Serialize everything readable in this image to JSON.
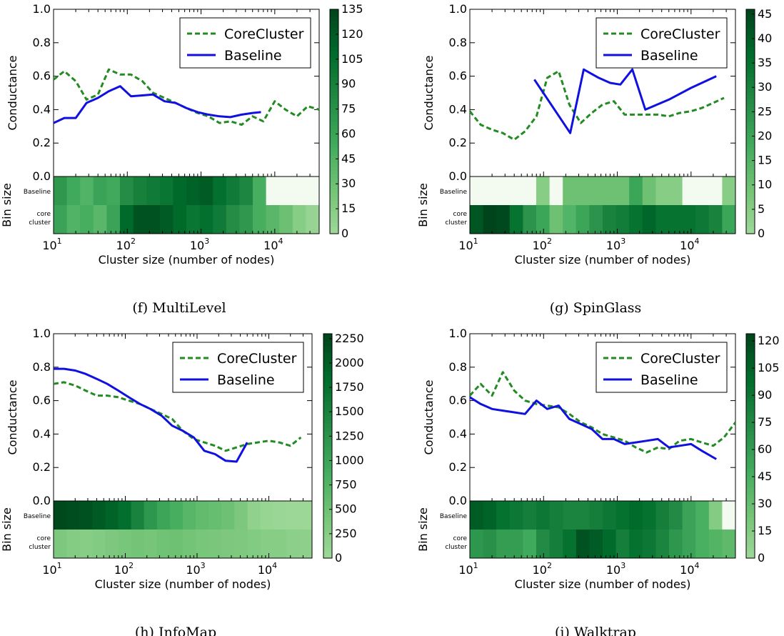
{
  "figure": {
    "bin_row_labels": {
      "baseline": "Baseline",
      "core1": "core",
      "core2": "cluster"
    },
    "bin_ylabel": "Bin size",
    "conductance_ylabel": "Conductance",
    "xlabel": "Cluster size (number of nodes)",
    "y_tick_labels": [
      "0.0",
      "0.2",
      "0.4",
      "0.6",
      "0.8",
      "1.0"
    ],
    "x_tick_labels": [
      {
        "base": "10",
        "exp": "1"
      },
      {
        "base": "10",
        "exp": "2"
      },
      {
        "base": "10",
        "exp": "3"
      },
      {
        "base": "10",
        "exp": "4"
      }
    ],
    "legend": {
      "corecluster": "CoreCluster",
      "baseline": "Baseline"
    },
    "colors": {
      "corecluster": "#228B22",
      "baseline": "#1010E0",
      "heat_low": "#f3fbf0",
      "heat_high": "#00441b"
    }
  },
  "chart_data": [
    {
      "type": "line",
      "caption": "(f) MultiLevel",
      "xscale": "log",
      "xlim": [
        10,
        40000
      ],
      "ylim": [
        0,
        1
      ],
      "series": [
        {
          "name": "CoreCluster",
          "x": [
            10,
            14,
            20,
            28,
            40,
            56,
            80,
            112,
            160,
            224,
            320,
            450,
            630,
            900,
            1260,
            1780,
            2500,
            3550,
            5000,
            7000,
            10000,
            14000,
            20000,
            28000,
            40000
          ],
          "y": [
            0.58,
            0.63,
            0.57,
            0.46,
            0.49,
            0.64,
            0.61,
            0.61,
            0.57,
            0.5,
            0.47,
            0.44,
            0.41,
            0.38,
            0.36,
            0.32,
            0.33,
            0.31,
            0.36,
            0.33,
            0.45,
            0.4,
            0.36,
            0.42,
            0.4
          ]
        },
        {
          "name": "Baseline",
          "x": [
            10,
            14,
            20,
            28,
            40,
            56,
            80,
            112,
            160,
            224,
            320,
            450,
            630,
            900,
            1260,
            1780,
            2500,
            3550,
            5000,
            6500
          ],
          "y": [
            0.32,
            0.35,
            0.35,
            0.44,
            0.47,
            0.51,
            0.54,
            0.48,
            0.485,
            0.49,
            0.45,
            0.44,
            0.41,
            0.385,
            0.37,
            0.36,
            0.355,
            0.37,
            0.38,
            0.385
          ]
        }
      ],
      "colorbar": {
        "max": 135,
        "ticks": [
          0,
          15,
          30,
          45,
          60,
          75,
          90,
          105,
          120,
          135
        ]
      },
      "heatmap": {
        "baseline": [
          70,
          55,
          45,
          60,
          55,
          80,
          90,
          95,
          100,
          110,
          115,
          120,
          105,
          95,
          85,
          50,
          0,
          0,
          0,
          0
        ],
        "core": [
          60,
          45,
          50,
          40,
          60,
          110,
          125,
          125,
          120,
          110,
          100,
          105,
          95,
          80,
          70,
          50,
          40,
          30,
          15,
          5
        ]
      }
    },
    {
      "type": "line",
      "caption": "(g) SpinGlass",
      "xscale": "log",
      "xlim": [
        10,
        40000
      ],
      "ylim": [
        0,
        1
      ],
      "series": [
        {
          "name": "CoreCluster",
          "x": [
            10,
            14,
            20,
            28,
            40,
            56,
            80,
            112,
            160,
            224,
            320,
            450,
            630,
            900,
            1260,
            1780,
            2500,
            3550,
            5000,
            7000,
            10000,
            14000,
            20000,
            28000
          ],
          "y": [
            0.39,
            0.31,
            0.28,
            0.26,
            0.22,
            0.27,
            0.36,
            0.59,
            0.63,
            0.43,
            0.32,
            0.38,
            0.43,
            0.45,
            0.37,
            0.37,
            0.37,
            0.37,
            0.36,
            0.38,
            0.39,
            0.41,
            0.44,
            0.47
          ]
        },
        {
          "name": "Baseline",
          "x": [
            75,
            230,
            350,
            560,
            800,
            1100,
            1600,
            2400,
            5000,
            10000,
            22000
          ],
          "y": [
            0.58,
            0.26,
            0.64,
            0.59,
            0.56,
            0.55,
            0.64,
            0.4,
            0.46,
            0.53,
            0.6
          ]
        }
      ],
      "colorbar": {
        "max": 46,
        "ticks": [
          0,
          5,
          10,
          15,
          20,
          25,
          30,
          35,
          40,
          45
        ]
      },
      "heatmap": {
        "baseline": [
          0,
          0,
          0,
          0,
          0,
          5,
          0,
          10,
          10,
          10,
          10,
          10,
          20,
          10,
          5,
          5,
          0,
          0,
          0,
          5
        ],
        "core": [
          42,
          46,
          45,
          35,
          25,
          20,
          10,
          15,
          20,
          25,
          30,
          32,
          35,
          38,
          35,
          35,
          35,
          33,
          30,
          20
        ]
      }
    },
    {
      "type": "line",
      "caption": "(h) InfoMap",
      "xscale": "log",
      "xlim": [
        10,
        40000
      ],
      "ylim": [
        0,
        1
      ],
      "series": [
        {
          "name": "CoreCluster",
          "x": [
            10,
            14,
            20,
            28,
            40,
            56,
            80,
            112,
            160,
            224,
            320,
            450,
            630,
            900,
            1260,
            1780,
            2500,
            3550,
            5000,
            7000,
            10000,
            14000,
            20000,
            28000
          ],
          "y": [
            0.7,
            0.71,
            0.69,
            0.66,
            0.63,
            0.63,
            0.62,
            0.6,
            0.58,
            0.55,
            0.52,
            0.49,
            0.42,
            0.37,
            0.35,
            0.33,
            0.3,
            0.32,
            0.34,
            0.35,
            0.36,
            0.35,
            0.33,
            0.38
          ]
        },
        {
          "name": "Baseline",
          "x": [
            10,
            14,
            20,
            28,
            40,
            56,
            80,
            112,
            160,
            224,
            320,
            450,
            630,
            900,
            1260,
            1780,
            2500,
            3550,
            5000
          ],
          "y": [
            0.79,
            0.79,
            0.78,
            0.76,
            0.73,
            0.7,
            0.66,
            0.62,
            0.58,
            0.55,
            0.51,
            0.45,
            0.42,
            0.38,
            0.3,
            0.28,
            0.24,
            0.235,
            0.35
          ]
        }
      ],
      "colorbar": {
        "max": 2300,
        "ticks": [
          0,
          250,
          500,
          750,
          1000,
          1250,
          1500,
          1750,
          2000,
          2250
        ]
      },
      "heatmap": {
        "baseline": [
          2250,
          2200,
          2150,
          2050,
          1950,
          1800,
          1500,
          1200,
          1000,
          850,
          700,
          600,
          550,
          500,
          350,
          150,
          80,
          50,
          30,
          20
        ],
        "core": [
          350,
          280,
          250,
          300,
          350,
          400,
          450,
          420,
          480,
          500,
          450,
          400,
          380,
          350,
          330,
          300,
          250,
          250,
          200,
          180
        ]
      }
    },
    {
      "type": "line",
      "caption": "(i) Walktrap",
      "xscale": "log",
      "xlim": [
        10,
        40000
      ],
      "ylim": [
        0,
        1
      ],
      "series": [
        {
          "name": "CoreCluster",
          "x": [
            10,
            14,
            20,
            28,
            40,
            56,
            80,
            112,
            160,
            224,
            320,
            450,
            630,
            900,
            1260,
            1780,
            2500,
            3550,
            5000,
            7000,
            10000,
            14000,
            20000,
            28000,
            40000
          ],
          "y": [
            0.63,
            0.7,
            0.63,
            0.77,
            0.66,
            0.6,
            0.58,
            0.57,
            0.56,
            0.52,
            0.47,
            0.44,
            0.4,
            0.38,
            0.36,
            0.32,
            0.29,
            0.32,
            0.31,
            0.36,
            0.37,
            0.35,
            0.33,
            0.38,
            0.47
          ]
        },
        {
          "name": "Baseline",
          "x": [
            10,
            14,
            20,
            28,
            40,
            56,
            80,
            112,
            160,
            224,
            320,
            450,
            630,
            900,
            1260,
            1780,
            2500,
            3550,
            5000,
            7000,
            10000,
            14000,
            22000
          ],
          "y": [
            0.62,
            0.58,
            0.55,
            0.54,
            0.53,
            0.52,
            0.6,
            0.55,
            0.57,
            0.49,
            0.46,
            0.43,
            0.37,
            0.37,
            0.34,
            0.35,
            0.36,
            0.37,
            0.32,
            0.33,
            0.34,
            0.3,
            0.25
          ]
        }
      ],
      "colorbar": {
        "max": 124,
        "ticks": [
          0,
          15,
          30,
          45,
          60,
          75,
          90,
          105,
          120
        ]
      },
      "heatmap": {
        "baseline": [
          110,
          105,
          95,
          90,
          85,
          90,
          85,
          80,
          80,
          85,
          90,
          95,
          100,
          95,
          85,
          75,
          55,
          45,
          15,
          0
        ],
        "core": [
          65,
          70,
          60,
          60,
          50,
          75,
          85,
          95,
          115,
          110,
          100,
          85,
          95,
          90,
          80,
          65,
          55,
          45,
          40,
          35
        ]
      }
    }
  ]
}
